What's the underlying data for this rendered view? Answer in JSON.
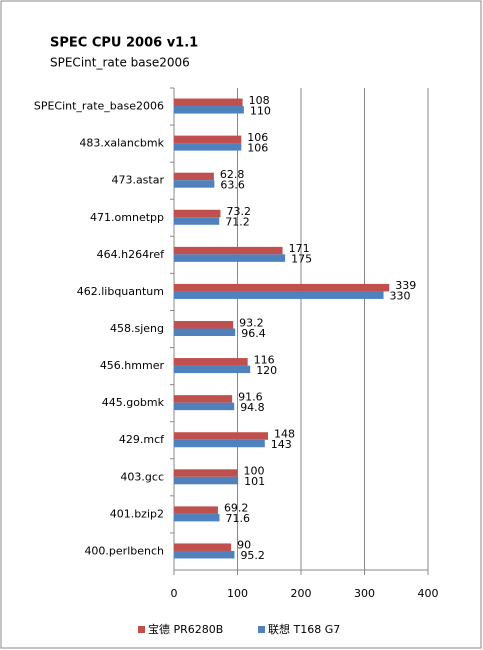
{
  "chart_data": {
    "type": "bar",
    "orientation": "horizontal",
    "title": "SPEC CPU 2006 v1.1",
    "subtitle": "SPECint_rate base2006",
    "categories": [
      "SPECint_rate_base2006",
      "483.xalancbmk",
      "473.astar",
      "471.omnetpp",
      "464.h264ref",
      "462.libquantum",
      "458.sjeng",
      "456.hmmer",
      "445.gobmk",
      "429.mcf",
      "403.gcc",
      "401.bzip2",
      "400.perlbench"
    ],
    "series": [
      {
        "name": "宝德 PR6280B",
        "color": "#c0504d",
        "values": [
          108,
          106,
          62.8,
          73.2,
          171,
          339,
          93.2,
          116,
          91.6,
          148,
          100,
          69.2,
          90
        ]
      },
      {
        "name": "联想 T168 G7",
        "color": "#4f81bd",
        "values": [
          110,
          106,
          63.6,
          71.2,
          175,
          330,
          96.4,
          120,
          94.8,
          143,
          101,
          71.6,
          95.2
        ]
      }
    ],
    "xlim": [
      0,
      400
    ],
    "xticks": [
      0,
      100,
      200,
      300,
      400
    ],
    "grid": true,
    "legend": "bottom"
  }
}
